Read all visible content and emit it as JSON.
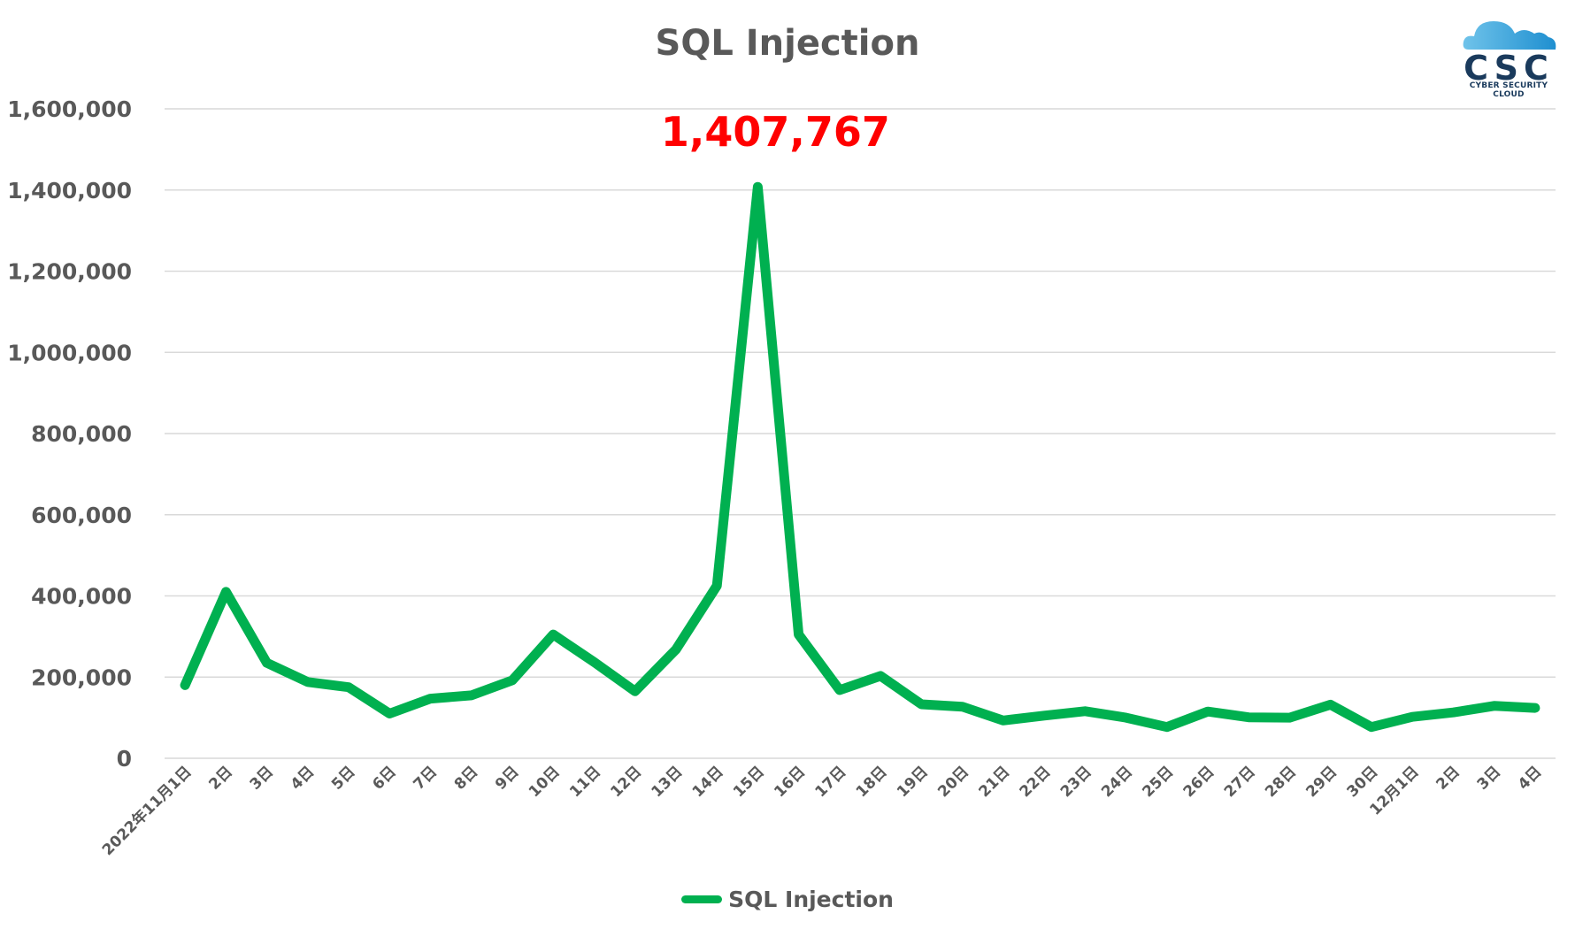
{
  "logo": {
    "mark": "CSC",
    "tagline": "CYBER SECURITY CLOUD"
  },
  "chart_data": {
    "type": "line",
    "title": "SQL Injection",
    "xlabel": "",
    "ylabel": "",
    "ylim": [
      0,
      1600000
    ],
    "yticks": [
      0,
      200000,
      400000,
      600000,
      800000,
      1000000,
      1200000,
      1400000,
      1600000
    ],
    "ytick_labels": [
      "0",
      "200,000",
      "400,000",
      "600,000",
      "800,000",
      "1,000,000",
      "1,200,000",
      "1,400,000",
      "1,600,000"
    ],
    "grid": true,
    "legend": "bottom",
    "categories": [
      "2022年11月1日",
      "2日",
      "3日",
      "4日",
      "5日",
      "6日",
      "7日",
      "8日",
      "9日",
      "10日",
      "11日",
      "12日",
      "13日",
      "14日",
      "15日",
      "16日",
      "17日",
      "18日",
      "19日",
      "20日",
      "21日",
      "22日",
      "23日",
      "24日",
      "25日",
      "26日",
      "27日",
      "28日",
      "29日",
      "30日",
      "12月1日",
      "2日",
      "3日",
      "4日"
    ],
    "series": [
      {
        "name": "SQL Injection",
        "color": "#00b050",
        "values": [
          180000,
          410000,
          235000,
          188000,
          175000,
          110000,
          147000,
          155000,
          192000,
          305000,
          237000,
          165000,
          268000,
          425000,
          1407767,
          305000,
          168000,
          203000,
          133000,
          127000,
          93000,
          105000,
          116000,
          100000,
          77000,
          115000,
          101000,
          100000,
          132000,
          77000,
          102000,
          113000,
          129000,
          124000
        ]
      }
    ],
    "annotations": [
      {
        "text": "1,407,767",
        "category_index": 14,
        "color": "#ff0000"
      }
    ]
  }
}
